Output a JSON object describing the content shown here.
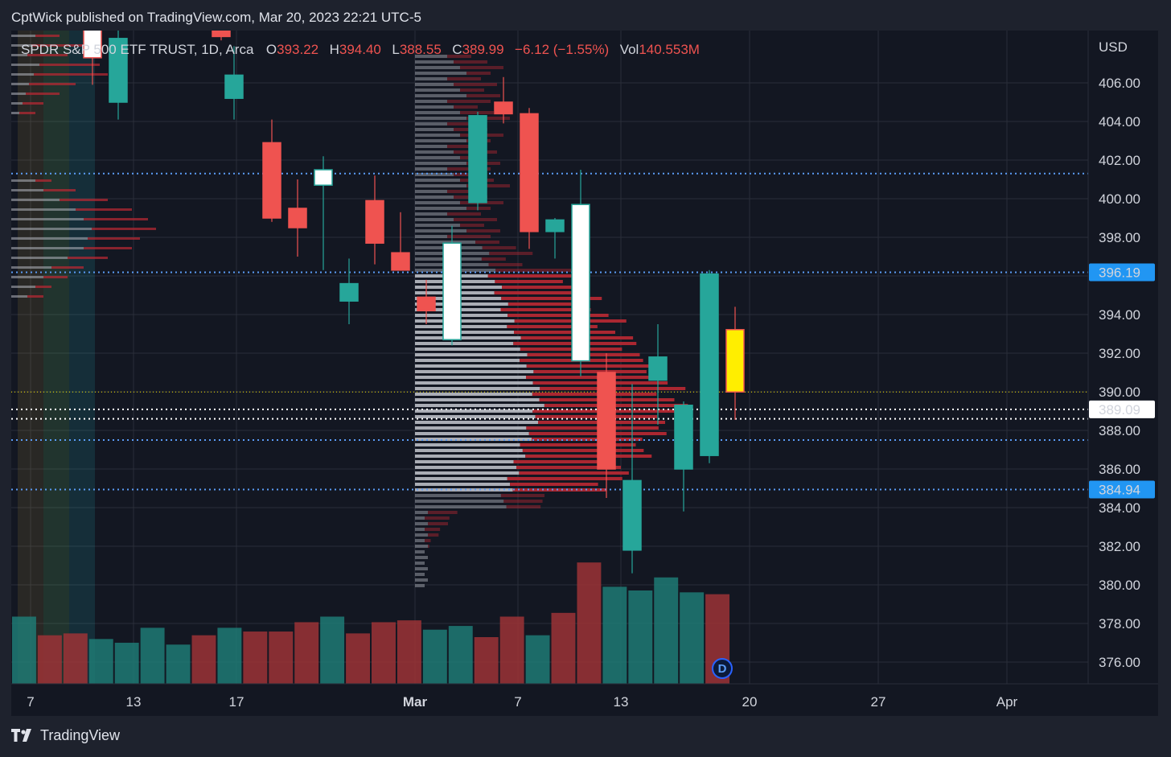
{
  "header": {
    "text": "CptWick published on TradingView.com, Mar 20, 2023 22:21 UTC-5"
  },
  "footer": {
    "brand": "TradingView",
    "logo_icon": "tradingview-logo-icon"
  },
  "legend": {
    "symbol": "SPDR S&P 500 ETF TRUST, 1D, Arca",
    "o_label": "O",
    "o_value": "393.22",
    "h_label": "H",
    "h_value": "394.40",
    "l_label": "L",
    "l_value": "388.55",
    "c_label": "C",
    "c_value": "389.99",
    "change": "−6.12 (−1.55%)",
    "vol_label": "Vol",
    "vol_value": "140.553M"
  },
  "badge": {
    "text": "D"
  },
  "colors": {
    "background": "#131722",
    "up": "#26a69a",
    "down": "#ef5350",
    "highlight": "#ffee00",
    "level_blue": "#5b9cf6",
    "label_blue": "#2196f3",
    "white": "#ffffff"
  },
  "chart_data": {
    "type": "candlestick",
    "y_axis_label": "USD",
    "ylim": [
      375,
      409
    ],
    "y_ticks": [
      "406.00",
      "404.00",
      "402.00",
      "400.00",
      "398.00",
      "396.00",
      "394.00",
      "392.00",
      "390.00",
      "388.00",
      "386.00",
      "384.00",
      "382.00",
      "380.00",
      "378.00",
      "376.00"
    ],
    "x_ticks": [
      "7",
      "13",
      "17",
      "Mar",
      "7",
      "13",
      "20",
      "27",
      "Apr"
    ],
    "price_labels": [
      {
        "value": "396.19",
        "style": "blue"
      },
      {
        "value": "389.09",
        "style": "white"
      },
      {
        "value": "384.94",
        "style": "blue"
      }
    ],
    "levels": [
      {
        "price": 401.3,
        "color": "blue"
      },
      {
        "price": 396.19,
        "color": "blue"
      },
      {
        "price": 389.99,
        "color": "yellow"
      },
      {
        "price": 389.09,
        "color": "white"
      },
      {
        "price": 388.6,
        "color": "white"
      },
      {
        "price": 387.5,
        "color": "blue"
      },
      {
        "price": 384.94,
        "color": "blue"
      }
    ],
    "candles": [
      {
        "o": 408.9,
        "h": 409.5,
        "l": 405.9,
        "c": 407.3,
        "color": "white"
      },
      {
        "o": 405.0,
        "h": 409.5,
        "l": 404.1,
        "c": 408.3,
        "color": "up"
      },
      {
        "o": 408.8,
        "h": 409.4,
        "l": 408.2,
        "c": 408.4,
        "color": "down"
      },
      {
        "o": 405.2,
        "h": 407.9,
        "l": 404.1,
        "c": 406.4,
        "color": "up"
      },
      {
        "o": 402.9,
        "h": 404.1,
        "l": 398.8,
        "c": 399.0,
        "color": "down"
      },
      {
        "o": 399.5,
        "h": 401.0,
        "l": 397.0,
        "c": 398.5,
        "color": "down"
      },
      {
        "o": 400.7,
        "h": 402.2,
        "l": 396.3,
        "c": 401.5,
        "color": "white"
      },
      {
        "o": 394.7,
        "h": 396.9,
        "l": 393.5,
        "c": 395.6,
        "color": "up"
      },
      {
        "o": 399.9,
        "h": 401.2,
        "l": 396.6,
        "c": 397.7,
        "color": "down"
      },
      {
        "o": 397.2,
        "h": 399.3,
        "l": 396.3,
        "c": 396.3,
        "color": "down"
      },
      {
        "o": 394.9,
        "h": 395.8,
        "l": 393.5,
        "c": 394.2,
        "color": "down"
      },
      {
        "o": 392.7,
        "h": 398.6,
        "l": 392.4,
        "c": 397.7,
        "color": "white"
      },
      {
        "o": 399.8,
        "h": 404.5,
        "l": 399.4,
        "c": 404.3,
        "color": "up"
      },
      {
        "o": 405.0,
        "h": 406.3,
        "l": 403.9,
        "c": 404.4,
        "color": "down"
      },
      {
        "o": 404.4,
        "h": 404.7,
        "l": 397.4,
        "c": 398.3,
        "color": "down"
      },
      {
        "o": 398.3,
        "h": 399.0,
        "l": 396.9,
        "c": 398.9,
        "color": "up"
      },
      {
        "o": 391.6,
        "h": 401.5,
        "l": 390.8,
        "c": 399.7,
        "color": "white"
      },
      {
        "o": 391.0,
        "h": 392.0,
        "l": 384.5,
        "c": 386.0,
        "color": "down"
      },
      {
        "o": 381.8,
        "h": 390.4,
        "l": 380.6,
        "c": 385.4,
        "color": "up"
      },
      {
        "o": 390.6,
        "h": 393.5,
        "l": 388.3,
        "c": 391.8,
        "color": "up"
      },
      {
        "o": 386.0,
        "h": 389.5,
        "l": 383.8,
        "c": 389.3,
        "color": "up"
      },
      {
        "o": 386.7,
        "h": 396.3,
        "l": 386.3,
        "c": 396.1,
        "color": "up"
      },
      {
        "o": 393.22,
        "h": 394.4,
        "l": 388.55,
        "c": 389.99,
        "color": "highlight"
      }
    ],
    "volume": {
      "series": [
        {
          "v": 0.36,
          "dir": "up"
        },
        {
          "v": 0.26,
          "dir": "down"
        },
        {
          "v": 0.27,
          "dir": "down"
        },
        {
          "v": 0.24,
          "dir": "up"
        },
        {
          "v": 0.22,
          "dir": "up"
        },
        {
          "v": 0.3,
          "dir": "up"
        },
        {
          "v": 0.21,
          "dir": "up"
        },
        {
          "v": 0.26,
          "dir": "down"
        },
        {
          "v": 0.3,
          "dir": "up"
        },
        {
          "v": 0.28,
          "dir": "down"
        },
        {
          "v": 0.28,
          "dir": "down"
        },
        {
          "v": 0.33,
          "dir": "down"
        },
        {
          "v": 0.36,
          "dir": "up"
        },
        {
          "v": 0.27,
          "dir": "down"
        },
        {
          "v": 0.33,
          "dir": "down"
        },
        {
          "v": 0.34,
          "dir": "down"
        },
        {
          "v": 0.29,
          "dir": "up"
        },
        {
          "v": 0.31,
          "dir": "up"
        },
        {
          "v": 0.25,
          "dir": "down"
        },
        {
          "v": 0.36,
          "dir": "down"
        },
        {
          "v": 0.26,
          "dir": "up"
        },
        {
          "v": 0.38,
          "dir": "down"
        },
        {
          "v": 0.65,
          "dir": "down"
        },
        {
          "v": 0.52,
          "dir": "up"
        },
        {
          "v": 0.5,
          "dir": "up"
        },
        {
          "v": 0.57,
          "dir": "up"
        },
        {
          "v": 0.49,
          "dir": "up"
        },
        {
          "v": 0.48,
          "dir": "down"
        }
      ]
    }
  }
}
